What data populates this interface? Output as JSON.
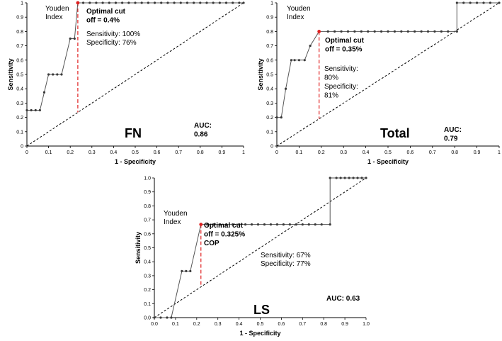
{
  "chart_data": [
    {
      "type": "line",
      "panel_label": "FN",
      "xlabel": "1 - Specificity",
      "ylabel": "Sensitivity",
      "xlim": [
        0,
        1
      ],
      "ylim": [
        0,
        1
      ],
      "x_ticks": [
        "0",
        "0.1",
        "0.2",
        "0.3",
        "0.4",
        "0.5",
        "0.6",
        "0.7",
        "0.8",
        "0.9",
        "1"
      ],
      "y_ticks": [
        "0",
        "0.1",
        "0.2",
        "0.3",
        "0.4",
        "0.5",
        "0.6",
        "0.7",
        "0.8",
        "0.9",
        "1"
      ],
      "grid": false,
      "reference_line": {
        "style": "dashed",
        "x": [
          0,
          1
        ],
        "y": [
          0,
          1
        ]
      },
      "series": [
        {
          "x": [
            0,
            0.02,
            0.04,
            0.06,
            0.08,
            0.1,
            0.12,
            0.14,
            0.16,
            0.2,
            0.22,
            0.235,
            0.26,
            0.29,
            0.32,
            0.35,
            0.38,
            0.41,
            0.44,
            0.47,
            0.5,
            0.53,
            0.56,
            0.59,
            0.62,
            0.65,
            0.68,
            0.71,
            0.74,
            0.77,
            0.8,
            0.83,
            0.86,
            0.89,
            0.92,
            0.95,
            0.98,
            1.0
          ],
          "y": [
            0.25,
            0.25,
            0.25,
            0.25,
            0.375,
            0.5,
            0.5,
            0.5,
            0.5,
            0.75,
            0.75,
            1,
            1,
            1,
            1,
            1,
            1,
            1,
            1,
            1,
            1,
            1,
            1,
            1,
            1,
            1,
            1,
            1,
            1,
            1,
            1,
            1,
            1,
            1,
            1,
            1,
            1,
            1
          ]
        }
      ],
      "optimal_point": {
        "x": 0.235,
        "y": 1
      },
      "annotations": {
        "youden": [
          "Youden",
          "Index"
        ],
        "cutoff": [
          "Optimal cut",
          "off = 0.4%"
        ],
        "stats": [
          "Sensitivity: 100%",
          "Specificity: 76%"
        ],
        "auc": [
          "AUC:",
          "0.86"
        ]
      }
    },
    {
      "type": "line",
      "panel_label": "Total",
      "xlabel": "1 - Specificity",
      "ylabel": "Sensitivity",
      "xlim": [
        0,
        1
      ],
      "ylim": [
        0,
        1
      ],
      "x_ticks": [
        "0",
        "0.1",
        "0.2",
        "0.3",
        "0.4",
        "0.5",
        "0.6",
        "0.7",
        "0.8",
        "0.9",
        "1"
      ],
      "y_ticks": [
        "0",
        "0.1",
        "0.2",
        "0.3",
        "0.4",
        "0.5",
        "0.6",
        "0.7",
        "0.8",
        "0.9",
        "1"
      ],
      "grid": false,
      "reference_line": {
        "style": "dashed",
        "x": [
          0,
          1
        ],
        "y": [
          0,
          1
        ]
      },
      "series": [
        {
          "x": [
            0,
            0.02,
            0.04,
            0.065,
            0.08,
            0.1,
            0.125,
            0.15,
            0.19,
            0.23,
            0.26,
            0.29,
            0.32,
            0.35,
            0.38,
            0.41,
            0.44,
            0.47,
            0.5,
            0.53,
            0.56,
            0.59,
            0.62,
            0.65,
            0.68,
            0.71,
            0.74,
            0.77,
            0.81,
            0.81,
            0.84,
            0.87,
            0.9,
            0.93,
            0.96,
            1.0
          ],
          "y": [
            0.2,
            0.2,
            0.4,
            0.6,
            0.6,
            0.6,
            0.6,
            0.7,
            0.8,
            0.8,
            0.8,
            0.8,
            0.8,
            0.8,
            0.8,
            0.8,
            0.8,
            0.8,
            0.8,
            0.8,
            0.8,
            0.8,
            0.8,
            0.8,
            0.8,
            0.8,
            0.8,
            0.8,
            0.8,
            1,
            1,
            1,
            1,
            1,
            1,
            1
          ]
        }
      ],
      "optimal_point": {
        "x": 0.19,
        "y": 0.8
      },
      "annotations": {
        "youden": [
          "Youden",
          "Index"
        ],
        "cutoff": [
          "Optimal cut",
          "off = 0.35%"
        ],
        "stats": [
          "Sensitivity:",
          "80%",
          "Specificity:",
          "81%"
        ],
        "auc": [
          "AUC:",
          "0.79"
        ]
      }
    },
    {
      "type": "line",
      "panel_label": "LS",
      "xlabel": "1 - Specificity",
      "ylabel": "Sensitivity",
      "xlim": [
        0,
        1
      ],
      "ylim": [
        0,
        1
      ],
      "x_ticks": [
        "0.0",
        "0.1",
        "0.2",
        "0.3",
        "0.4",
        "0.5",
        "0.6",
        "0.7",
        "0.8",
        "0.9",
        "1.0"
      ],
      "y_ticks": [
        "0.0",
        "0.1",
        "0.2",
        "0.3",
        "0.4",
        "0.5",
        "0.6",
        "0.7",
        "0.8",
        "0.9",
        "1.0"
      ],
      "grid": false,
      "reference_line": {
        "style": "dashed",
        "x": [
          0,
          1
        ],
        "y": [
          0,
          1
        ]
      },
      "series": [
        {
          "x": [
            0,
            0.03,
            0.06,
            0.08,
            0.13,
            0.15,
            0.17,
            0.22,
            0.25,
            0.28,
            0.31,
            0.34,
            0.37,
            0.4,
            0.43,
            0.46,
            0.49,
            0.52,
            0.55,
            0.58,
            0.61,
            0.64,
            0.67,
            0.7,
            0.73,
            0.76,
            0.79,
            0.83,
            0.83,
            0.86,
            0.88,
            0.9,
            0.92,
            0.94,
            0.96,
            0.98,
            1.0
          ],
          "y": [
            0,
            0,
            0,
            0,
            0.333,
            0.333,
            0.333,
            0.667,
            0.667,
            0.667,
            0.667,
            0.667,
            0.667,
            0.667,
            0.667,
            0.667,
            0.667,
            0.667,
            0.667,
            0.667,
            0.667,
            0.667,
            0.667,
            0.667,
            0.667,
            0.667,
            0.667,
            0.667,
            1,
            1,
            1,
            1,
            1,
            1,
            1,
            1,
            1
          ]
        }
      ],
      "optimal_point": {
        "x": 0.22,
        "y": 0.667
      },
      "annotations": {
        "youden": [
          "Youden",
          "Index"
        ],
        "cutoff": [
          "Optimal cut",
          "off = 0.325%",
          "COP"
        ],
        "stats": [
          "Sensitivity: 67%",
          "Specificity: 77%"
        ],
        "auc": [
          "AUC: 0.63"
        ]
      }
    }
  ],
  "colors": {
    "curve": "#555555",
    "marker": "#3a3a3a",
    "cutoff_line": "#e02020",
    "optimal_marker": "#e02020"
  }
}
